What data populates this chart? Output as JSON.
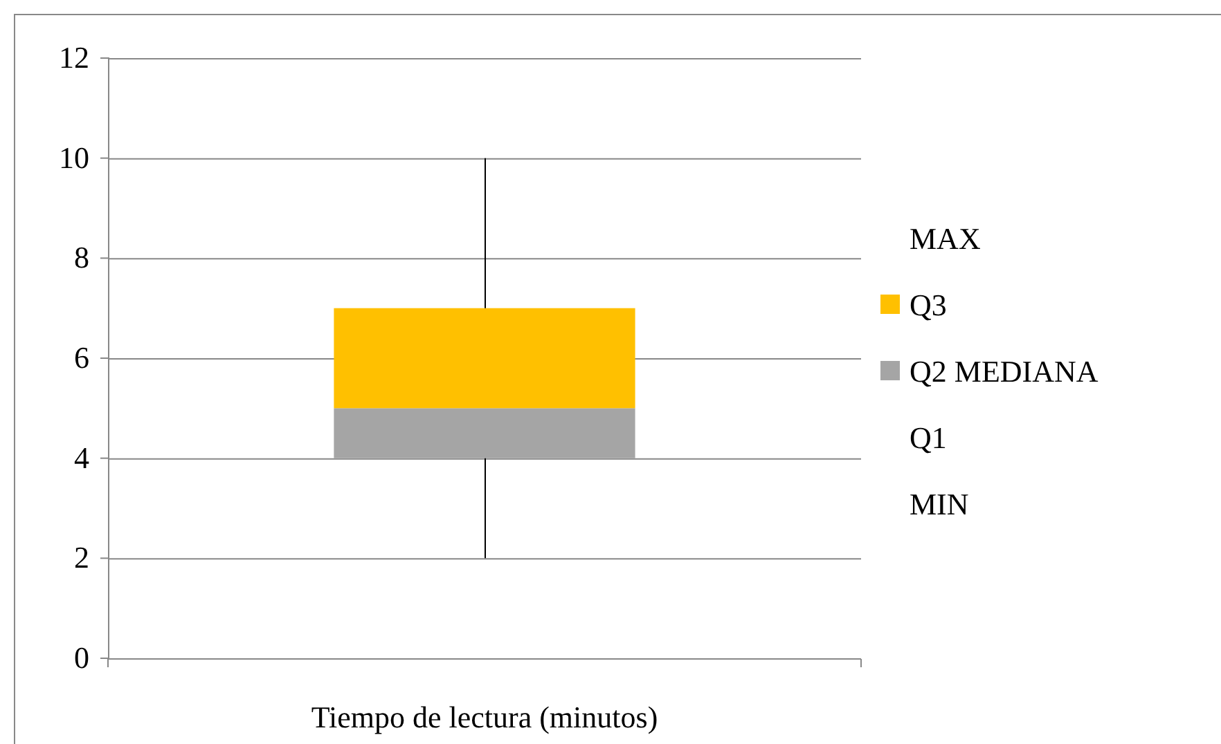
{
  "chart_data": {
    "type": "bar",
    "categories": [
      "Tiempo de lectura (minutos)"
    ],
    "series": [
      {
        "name": "MIN",
        "values": [
          null
        ]
      },
      {
        "name": "Q1",
        "values": [
          null
        ]
      },
      {
        "name": "Q2 MEDIANA",
        "color": "#a5a5a5",
        "values": [
          1
        ],
        "base": [
          4
        ],
        "errors": [
          [
            2,
            4
          ]
        ]
      },
      {
        "name": "Q3",
        "color": "#ffc000",
        "values": [
          2
        ],
        "base": [
          5
        ],
        "errors": [
          [
            7,
            10
          ]
        ]
      },
      {
        "name": "MAX",
        "values": [
          null
        ]
      }
    ],
    "ylim": [
      0,
      12
    ],
    "yticks": [
      0,
      2,
      4,
      6,
      8,
      10,
      12
    ],
    "grid": "y",
    "legend": "right"
  }
}
